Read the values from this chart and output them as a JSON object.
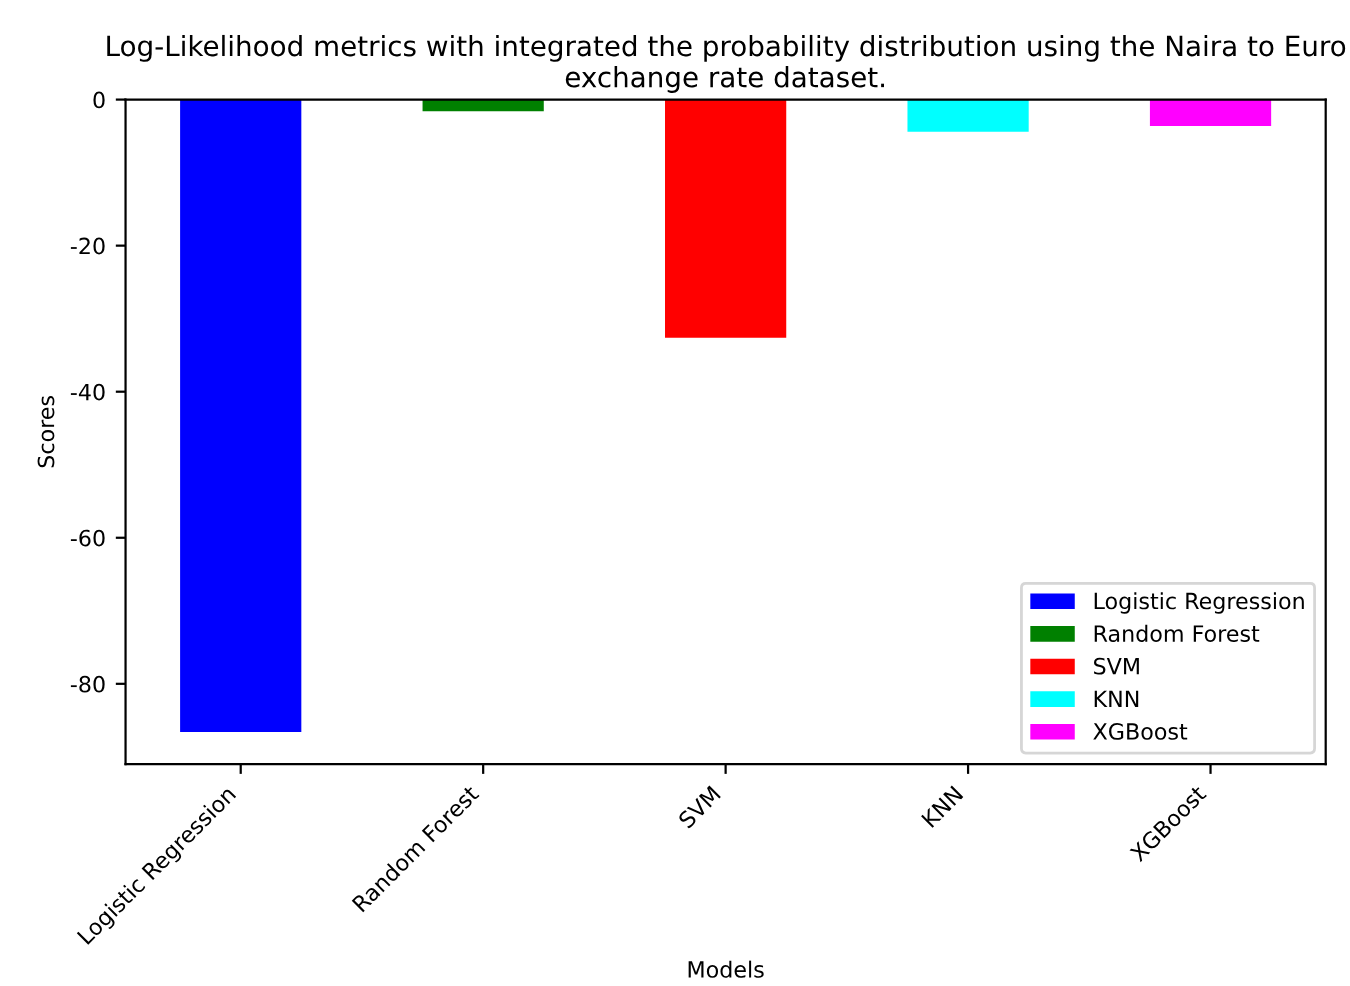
{
  "chart_data": {
    "type": "bar",
    "title": "Log-Likelihood metrics with integrated the probability distribution using the Naira to Euro exchange rate dataset.",
    "xlabel": "Models",
    "ylabel": "Scores",
    "categories": [
      "Logistic Regression",
      "Random Forest",
      "SVM",
      "KNN",
      "XGBoost"
    ],
    "series": [
      {
        "name": "Logistic Regression",
        "color": "#0000ff",
        "values": [
          -86.6,
          null,
          null,
          null,
          null
        ]
      },
      {
        "name": "Random Forest",
        "color": "#008000",
        "values": [
          null,
          -1.6,
          null,
          null,
          null
        ]
      },
      {
        "name": "SVM",
        "color": "#ff0000",
        "values": [
          null,
          null,
          -32.6,
          null,
          null
        ]
      },
      {
        "name": "KNN",
        "color": "#00ffff",
        "values": [
          null,
          null,
          null,
          -4.4,
          null
        ]
      },
      {
        "name": "XGBoost",
        "color": "#ff00ff",
        "values": [
          null,
          null,
          null,
          null,
          -3.6
        ]
      }
    ],
    "ylim": [
      -91,
      0
    ],
    "yticks": [
      -80,
      -60,
      -40,
      -20,
      0
    ],
    "legend": "bottom right"
  }
}
